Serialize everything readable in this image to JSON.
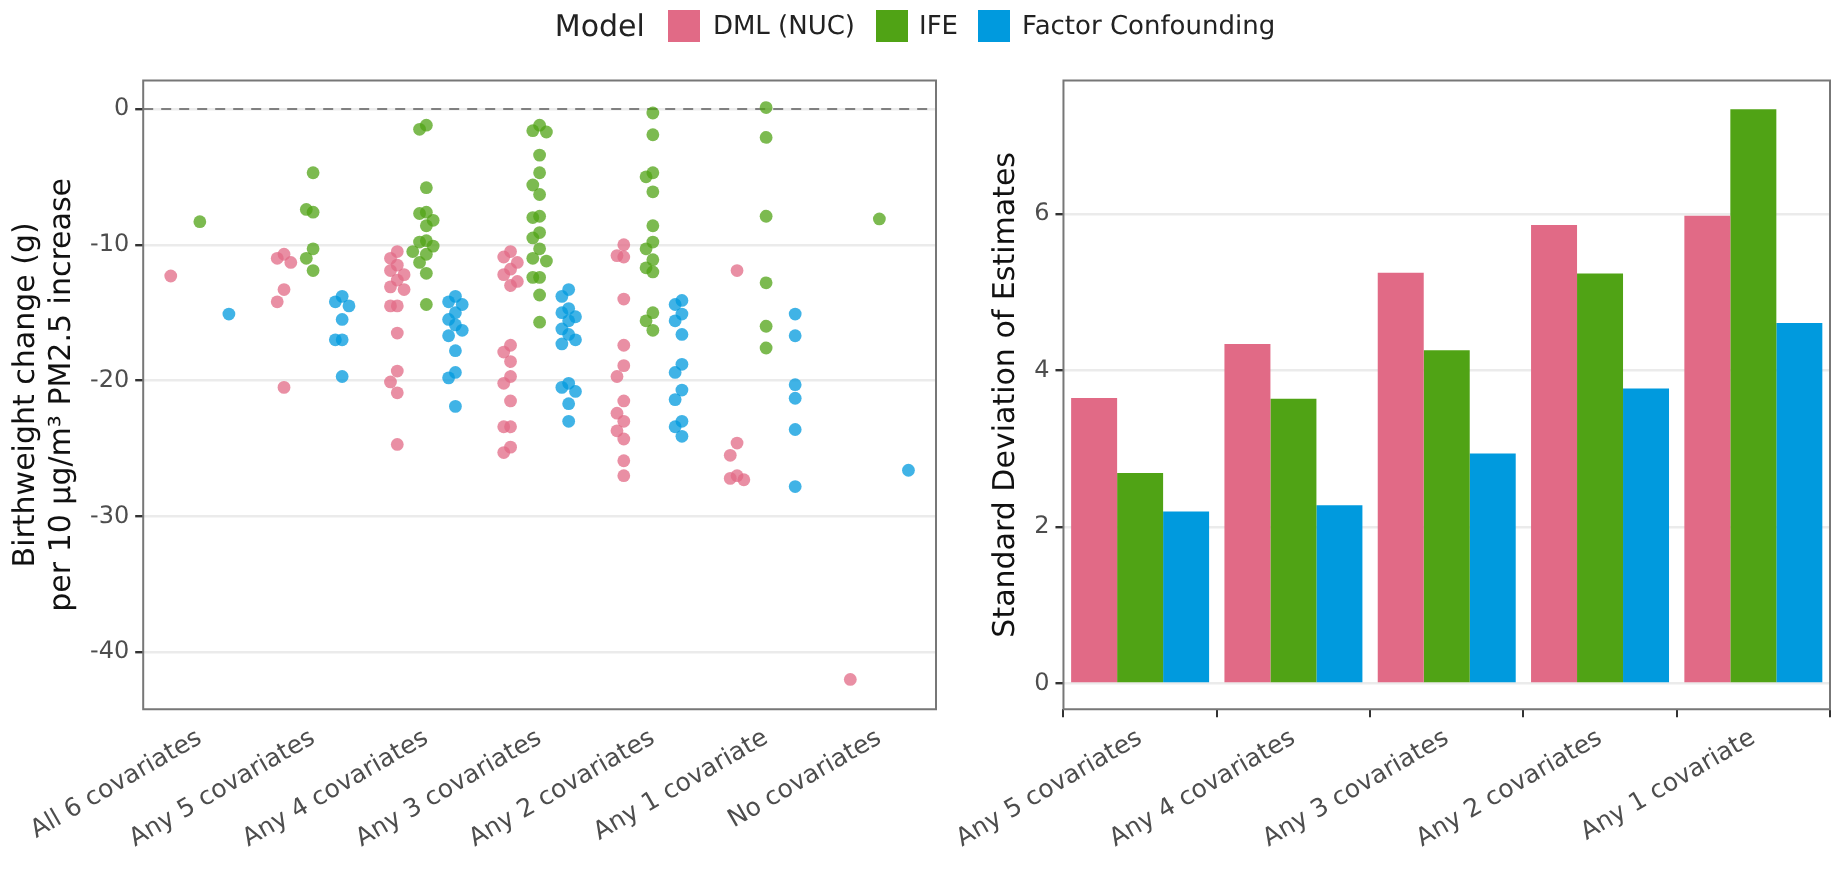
{
  "chart_data": [
    {
      "type": "scatter",
      "ylabel": "Birthweight change (g)\nper 10 µg/m³ PM2.5 increase",
      "legend_title": "Model",
      "legend": "top",
      "grid": "y",
      "marker": "circle",
      "categories": [
        "All 6 covariates",
        "Any 5 covariates",
        "Any 4 covariates",
        "Any 3 covariates",
        "Any 2 covariates",
        "Any 1 covariate",
        "No covariates"
      ],
      "ylim": [
        -44.2,
        2.1
      ],
      "yticks": [
        0,
        -10,
        -20,
        -30,
        -40
      ],
      "ref_lines": [
        {
          "axis": "y",
          "value": 0,
          "color": "#808080",
          "line_style": "dashed"
        }
      ],
      "series": [
        {
          "name": "DML (NUC)",
          "color": "#e16a86",
          "x": [
            "All 6 covariates",
            "Any 5 covariates",
            "Any 5 covariates",
            "Any 5 covariates",
            "Any 5 covariates",
            "Any 5 covariates",
            "Any 5 covariates",
            "Any 4 covariates",
            "Any 4 covariates",
            "Any 4 covariates",
            "Any 4 covariates",
            "Any 4 covariates",
            "Any 4 covariates",
            "Any 4 covariates",
            "Any 4 covariates",
            "Any 4 covariates",
            "Any 4 covariates",
            "Any 4 covariates",
            "Any 4 covariates",
            "Any 4 covariates",
            "Any 4 covariates",
            "Any 4 covariates",
            "Any 3 covariates",
            "Any 3 covariates",
            "Any 3 covariates",
            "Any 3 covariates",
            "Any 3 covariates",
            "Any 3 covariates",
            "Any 3 covariates",
            "Any 3 covariates",
            "Any 3 covariates",
            "Any 3 covariates",
            "Any 3 covariates",
            "Any 3 covariates",
            "Any 3 covariates",
            "Any 3 covariates",
            "Any 3 covariates",
            "Any 3 covariates",
            "Any 3 covariates",
            "Any 2 covariates",
            "Any 2 covariates",
            "Any 2 covariates",
            "Any 2 covariates",
            "Any 2 covariates",
            "Any 2 covariates",
            "Any 2 covariates",
            "Any 2 covariates",
            "Any 2 covariates",
            "Any 2 covariates",
            "Any 2 covariates",
            "Any 2 covariates",
            "Any 2 covariates",
            "Any 2 covariates",
            "Any 1 covariate",
            "Any 1 covariate",
            "Any 1 covariate",
            "Any 1 covariate",
            "Any 1 covariate",
            "Any 1 covariate",
            "No covariates"
          ],
          "values": [
            -12.3,
            -10.7,
            -11.0,
            -11.3,
            -13.3,
            -14.2,
            -20.5,
            -10.5,
            -11.0,
            -11.5,
            -11.9,
            -12.2,
            -12.6,
            -13.1,
            -13.3,
            -14.5,
            -14.5,
            -16.5,
            -19.3,
            -20.1,
            -20.9,
            -24.7,
            -10.5,
            -10.9,
            -11.3,
            -11.8,
            -12.2,
            -12.7,
            -13.0,
            -17.4,
            -17.9,
            -18.6,
            -19.7,
            -20.2,
            -21.5,
            -23.4,
            -23.4,
            -24.9,
            -25.3,
            -10.0,
            -10.8,
            -10.9,
            -14.0,
            -17.4,
            -18.9,
            -19.7,
            -21.5,
            -22.4,
            -23.0,
            -23.7,
            -24.3,
            -25.9,
            -27.0,
            -11.9,
            -24.6,
            -25.5,
            -27.0,
            -27.2,
            -27.3,
            -42.0
          ]
        },
        {
          "name": "IFE",
          "color": "#50a315",
          "x": [
            "All 6 covariates",
            "Any 5 covariates",
            "Any 5 covariates",
            "Any 5 covariates",
            "Any 5 covariates",
            "Any 5 covariates",
            "Any 5 covariates",
            "Any 4 covariates",
            "Any 4 covariates",
            "Any 4 covariates",
            "Any 4 covariates",
            "Any 4 covariates",
            "Any 4 covariates",
            "Any 4 covariates",
            "Any 4 covariates",
            "Any 4 covariates",
            "Any 4 covariates",
            "Any 4 covariates",
            "Any 4 covariates",
            "Any 4 covariates",
            "Any 4 covariates",
            "Any 4 covariates",
            "Any 3 covariates",
            "Any 3 covariates",
            "Any 3 covariates",
            "Any 3 covariates",
            "Any 3 covariates",
            "Any 3 covariates",
            "Any 3 covariates",
            "Any 3 covariates",
            "Any 3 covariates",
            "Any 3 covariates",
            "Any 3 covariates",
            "Any 3 covariates",
            "Any 3 covariates",
            "Any 3 covariates",
            "Any 3 covariates",
            "Any 3 covariates",
            "Any 3 covariates",
            "Any 3 covariates",
            "Any 2 covariates",
            "Any 2 covariates",
            "Any 2 covariates",
            "Any 2 covariates",
            "Any 2 covariates",
            "Any 2 covariates",
            "Any 2 covariates",
            "Any 2 covariates",
            "Any 2 covariates",
            "Any 2 covariates",
            "Any 2 covariates",
            "Any 2 covariates",
            "Any 2 covariates",
            "Any 2 covariates",
            "Any 1 covariate",
            "Any 1 covariate",
            "Any 1 covariate",
            "Any 1 covariate",
            "Any 1 covariate",
            "Any 1 covariate",
            "No covariates"
          ],
          "values": [
            -8.3,
            -4.7,
            -7.6,
            -7.4,
            -10.3,
            -11.0,
            -11.9,
            -1.2,
            -1.5,
            -5.8,
            -7.6,
            -7.7,
            -8.2,
            -8.6,
            -9.7,
            -9.8,
            -10.1,
            -10.5,
            -10.7,
            -11.3,
            -12.1,
            -14.4,
            -1.2,
            -1.6,
            -1.7,
            -3.4,
            -4.7,
            -5.6,
            -6.3,
            -7.9,
            -8.0,
            -9.1,
            -9.5,
            -10.3,
            -11.0,
            -11.2,
            -12.4,
            -12.4,
            -13.7,
            -15.7,
            -0.3,
            -1.9,
            -4.7,
            -5.0,
            -6.1,
            -8.6,
            -9.8,
            -10.3,
            -11.1,
            -11.7,
            -12.0,
            -15.0,
            -15.6,
            -16.3,
            0.1,
            -2.1,
            -7.9,
            -12.8,
            -16.0,
            -17.6,
            -8.1
          ]
        },
        {
          "name": "Factor Confounding",
          "color": "#009ade",
          "x": [
            "All 6 covariates",
            "Any 5 covariates",
            "Any 5 covariates",
            "Any 5 covariates",
            "Any 5 covariates",
            "Any 5 covariates",
            "Any 5 covariates",
            "Any 5 covariates",
            "Any 4 covariates",
            "Any 4 covariates",
            "Any 4 covariates",
            "Any 4 covariates",
            "Any 4 covariates",
            "Any 4 covariates",
            "Any 4 covariates",
            "Any 4 covariates",
            "Any 4 covariates",
            "Any 4 covariates",
            "Any 4 covariates",
            "Any 4 covariates",
            "Any 3 covariates",
            "Any 3 covariates",
            "Any 3 covariates",
            "Any 3 covariates",
            "Any 3 covariates",
            "Any 3 covariates",
            "Any 3 covariates",
            "Any 3 covariates",
            "Any 3 covariates",
            "Any 3 covariates",
            "Any 3 covariates",
            "Any 3 covariates",
            "Any 3 covariates",
            "Any 3 covariates",
            "Any 3 covariates",
            "Any 2 covariates",
            "Any 2 covariates",
            "Any 2 covariates",
            "Any 2 covariates",
            "Any 2 covariates",
            "Any 2 covariates",
            "Any 2 covariates",
            "Any 2 covariates",
            "Any 2 covariates",
            "Any 2 covariates",
            "Any 2 covariates",
            "Any 2 covariates",
            "Any 1 covariate",
            "Any 1 covariate",
            "Any 1 covariate",
            "Any 1 covariate",
            "Any 1 covariate",
            "Any 1 covariate",
            "No covariates"
          ],
          "values": [
            -15.1,
            -13.8,
            -14.2,
            -14.5,
            -15.5,
            -17.0,
            -17.0,
            -19.7,
            -13.8,
            -14.2,
            -14.4,
            -15.0,
            -15.5,
            -15.9,
            -16.3,
            -16.7,
            -17.8,
            -19.4,
            -19.8,
            -21.9,
            -13.3,
            -13.8,
            -14.7,
            -15.0,
            -15.3,
            -15.6,
            -16.2,
            -16.6,
            -17.0,
            -17.3,
            -20.2,
            -20.5,
            -20.8,
            -21.7,
            -23.0,
            -14.1,
            -14.4,
            -15.1,
            -15.6,
            -16.6,
            -18.8,
            -19.4,
            -20.7,
            -21.4,
            -23.0,
            -23.4,
            -24.1,
            -15.1,
            -16.7,
            -20.3,
            -21.3,
            -23.6,
            -27.8,
            -26.6
          ]
        }
      ]
    },
    {
      "type": "bar",
      "ylabel": "Standard Deviation of Estimates",
      "grid": "y",
      "categories": [
        "Any 5 covariates",
        "Any 4 covariates",
        "Any 3 covariates",
        "Any 2 covariates",
        "Any 1 covariate"
      ],
      "ylim": [
        -0.33,
        7.71
      ],
      "yticks": [
        0,
        2,
        4,
        6
      ],
      "series": [
        {
          "color": "#e16a86",
          "values": [
            3.65,
            4.34,
            5.25,
            5.86,
            5.98
          ]
        },
        {
          "color": "#50a315",
          "values": [
            2.69,
            3.64,
            4.26,
            5.24,
            7.34
          ]
        },
        {
          "color": "#009ade",
          "values": [
            2.2,
            2.28,
            2.94,
            3.77,
            4.61
          ]
        }
      ]
    }
  ]
}
